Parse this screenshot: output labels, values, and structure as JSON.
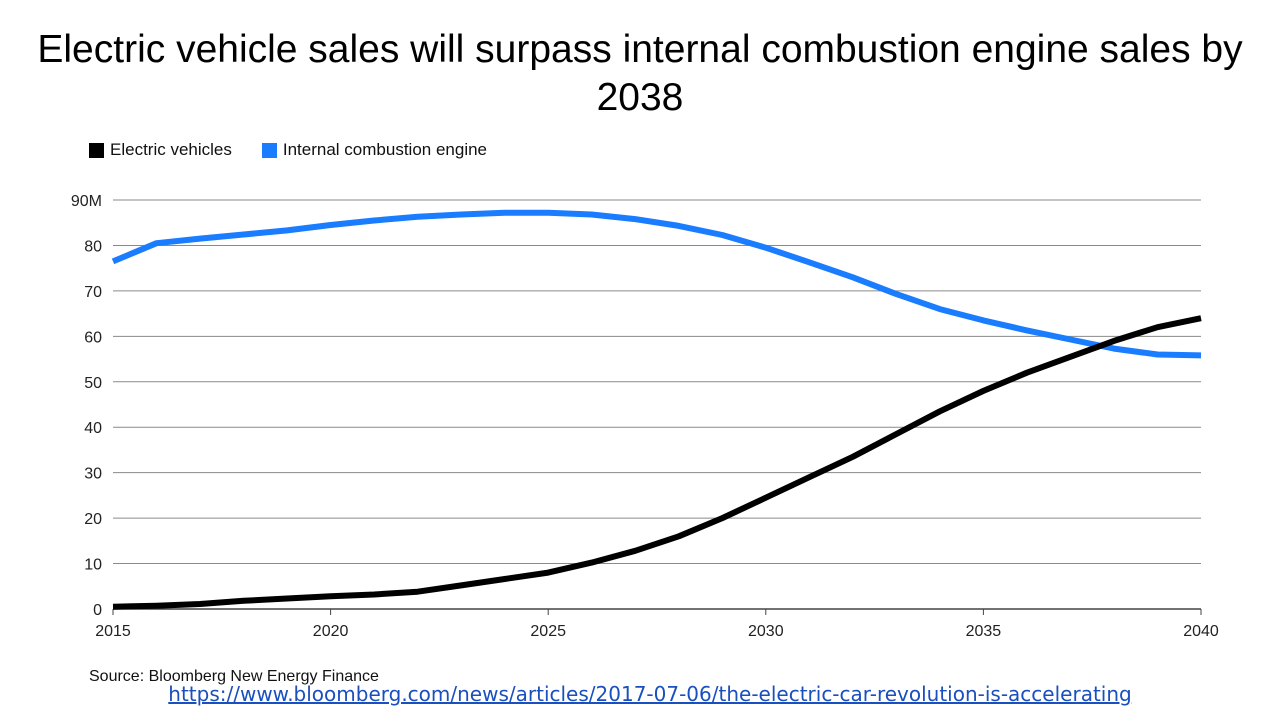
{
  "slide": {
    "title": "Electric vehicle sales will surpass internal combustion engine sales by 2038",
    "source": "Source: Bloomberg New Energy Finance",
    "link": "https://www.bloomberg.com/news/articles/2017-07-06/the-electric-car-revolution-is-accelerating"
  },
  "chart_data": {
    "type": "line",
    "title": "",
    "xlabel": "",
    "ylabel": "",
    "xlim": [
      2015,
      2040
    ],
    "ylim": [
      0,
      90
    ],
    "x_ticks": [
      2015,
      2020,
      2025,
      2030,
      2035,
      2040
    ],
    "y_ticks": [
      0,
      10,
      20,
      30,
      40,
      50,
      60,
      70,
      80,
      90
    ],
    "y_tick_labels": [
      "0",
      "10",
      "20",
      "30",
      "40",
      "50",
      "60",
      "70",
      "80",
      "90M"
    ],
    "grid": "horizontal",
    "legend_position": "top-left",
    "x": [
      2015,
      2016,
      2017,
      2018,
      2019,
      2020,
      2021,
      2022,
      2023,
      2024,
      2025,
      2026,
      2027,
      2028,
      2029,
      2030,
      2031,
      2032,
      2033,
      2034,
      2035,
      2036,
      2037,
      2038,
      2039,
      2040
    ],
    "series": [
      {
        "name": "Electric vehicles",
        "color": "#000000",
        "values": [
          0.5,
          0.7,
          1.1,
          1.8,
          2.3,
          2.8,
          3.2,
          3.8,
          5.2,
          6.6,
          8.0,
          10.2,
          12.8,
          16.0,
          20.0,
          24.5,
          29.0,
          33.5,
          38.5,
          43.5,
          48.0,
          52.0,
          55.5,
          59.0,
          62.0,
          64.0
        ]
      },
      {
        "name": "Internal combustion engine",
        "color": "#1a7cff",
        "values": [
          76.5,
          80.5,
          81.5,
          82.4,
          83.3,
          84.5,
          85.5,
          86.3,
          86.8,
          87.2,
          87.2,
          86.8,
          85.8,
          84.3,
          82.3,
          79.5,
          76.3,
          73.0,
          69.3,
          66.0,
          63.5,
          61.3,
          59.3,
          57.3,
          56.0,
          55.8
        ]
      }
    ]
  }
}
